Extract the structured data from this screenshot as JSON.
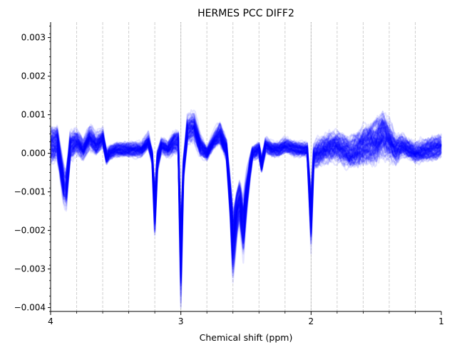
{
  "chart_data": {
    "type": "line",
    "title": "HERMES PCC DIFF2",
    "xlabel": "Chemical shift (ppm)",
    "ylabel": "",
    "xlim": [
      4,
      1
    ],
    "ylim": [
      -0.0041,
      0.0034
    ],
    "x_axis_reversed": true,
    "x_major_ticks": [
      4,
      3,
      2,
      1
    ],
    "x_major_tick_labels": [
      "4",
      "3",
      "2",
      "1"
    ],
    "x_minor_ticks": [
      3.8,
      3.6,
      3.4,
      3.2,
      2.8,
      2.6,
      2.4,
      2.2,
      1.8,
      1.6,
      1.4,
      1.2
    ],
    "y_ticks": [
      -0.004,
      -0.003,
      -0.002,
      -0.001,
      0.0,
      0.001,
      0.002,
      0.003
    ],
    "y_tick_labels": [
      "−0.004",
      "−0.003",
      "−0.002",
      "−0.001",
      "0.000",
      "0.001",
      "0.002",
      "0.003"
    ],
    "vertical_reference_lines": [
      3.8,
      3.6,
      3.4,
      3.2,
      3.0,
      2.8,
      2.6,
      2.4,
      2.2,
      2.0,
      1.8,
      1.6,
      1.4,
      1.2
    ],
    "series_color": "#0000ff",
    "series_alpha": 0.1,
    "series_count": 120,
    "envelope": {
      "x": [
        4.0,
        3.95,
        3.9,
        3.88,
        3.85,
        3.8,
        3.75,
        3.7,
        3.65,
        3.6,
        3.57,
        3.55,
        3.5,
        3.4,
        3.3,
        3.25,
        3.22,
        3.2,
        3.18,
        3.15,
        3.1,
        3.05,
        3.02,
        3.0,
        2.98,
        2.95,
        2.9,
        2.85,
        2.8,
        2.75,
        2.7,
        2.65,
        2.62,
        2.6,
        2.57,
        2.55,
        2.52,
        2.5,
        2.47,
        2.45,
        2.4,
        2.38,
        2.35,
        2.3,
        2.25,
        2.2,
        2.1,
        2.03,
        2.0,
        1.98,
        1.95,
        1.9,
        1.8,
        1.7,
        1.6,
        1.5,
        1.45,
        1.4,
        1.35,
        1.3,
        1.2,
        1.1,
        1.0
      ],
      "mean": [
        0.0002,
        0.0003,
        -0.0008,
        -0.0009,
        0.0002,
        0.0003,
        0.0001,
        0.0004,
        0.0002,
        0.0004,
        -0.0001,
        0.0,
        0.0001,
        0.0001,
        0.0001,
        0.0003,
        -0.0001,
        -0.0015,
        -0.0002,
        0.0002,
        0.0001,
        0.0003,
        0.0003,
        -0.0028,
        -0.0004,
        0.0006,
        0.0007,
        0.0002,
        0.0,
        0.0003,
        0.0005,
        0.0001,
        -0.0012,
        -0.0023,
        -0.0015,
        -0.0012,
        -0.0019,
        -0.0012,
        -0.0004,
        0.0,
        0.0001,
        -0.0003,
        0.0002,
        0.0001,
        0.0001,
        0.0002,
        0.0001,
        0.0001,
        -0.0017,
        -0.0001,
        0.0,
        0.0001,
        0.0002,
        0.0,
        0.0002,
        0.0003,
        0.0005,
        0.0003,
        0.0001,
        0.0002,
        0.0,
        0.0001,
        0.0002
      ],
      "spread": [
        0.0005,
        0.0005,
        0.0004,
        0.0004,
        0.0004,
        0.0003,
        0.0003,
        0.0003,
        0.0003,
        0.0002,
        0.0002,
        0.0002,
        0.0002,
        0.0002,
        0.0002,
        0.0002,
        0.0002,
        0.0004,
        0.0003,
        0.0002,
        0.0002,
        0.0003,
        0.0003,
        0.0005,
        0.0003,
        0.0003,
        0.0003,
        0.0003,
        0.0002,
        0.0002,
        0.0003,
        0.0003,
        0.0003,
        0.0005,
        0.0004,
        0.0004,
        0.0004,
        0.0004,
        0.0003,
        0.0002,
        0.0002,
        0.0002,
        0.0002,
        0.0002,
        0.0002,
        0.0002,
        0.0002,
        0.0002,
        0.0004,
        0.0003,
        0.0004,
        0.0004,
        0.0004,
        0.0004,
        0.0005,
        0.0006,
        0.0006,
        0.0005,
        0.0004,
        0.0003,
        0.0003,
        0.0003,
        0.0003
      ]
    }
  }
}
